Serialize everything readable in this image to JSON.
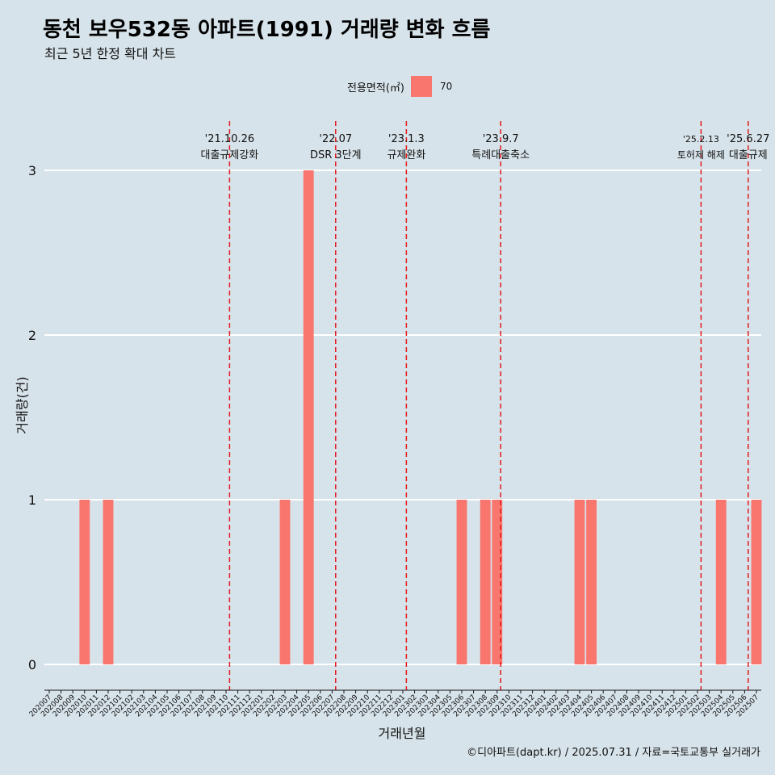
{
  "title": "동천 보우532동 아파트(1991) 거래량 변화 흐름",
  "subtitle": "최근 5년 한정 확대 차트",
  "caption": "©디아파트(dapt.kr) / 2025.07.31 / 자료=국토교통부 실거래가",
  "legend": {
    "title": "전용면적(㎡)",
    "label": "70",
    "color": "#f8766d"
  },
  "colors": {
    "background": "#d7e3ea",
    "bar": "#f8766d",
    "event_line": "#e31a1c",
    "grid": "#ffffff"
  },
  "chart_data": {
    "type": "bar",
    "xlabel": "거래년월",
    "ylabel": "거래량(건)",
    "ylim": [
      0,
      3
    ],
    "yticks": [
      0,
      1,
      2,
      3
    ],
    "grid": "horizontal",
    "legend_position": "top",
    "categories": [
      "202007",
      "202008",
      "202009",
      "202010",
      "202011",
      "202012",
      "202101",
      "202102",
      "202103",
      "202104",
      "202105",
      "202106",
      "202107",
      "202108",
      "202109",
      "202110",
      "202111",
      "202112",
      "202201",
      "202202",
      "202203",
      "202204",
      "202205",
      "202206",
      "202207",
      "202208",
      "202209",
      "202210",
      "202211",
      "202212",
      "202301",
      "202302",
      "202303",
      "202304",
      "202305",
      "202306",
      "202307",
      "202308",
      "202309",
      "202310",
      "202311",
      "202312",
      "202401",
      "202402",
      "202403",
      "202404",
      "202405",
      "202406",
      "202407",
      "202408",
      "202409",
      "202410",
      "202411",
      "202412",
      "202501",
      "202502",
      "202503",
      "202504",
      "202505",
      "202506",
      "202507"
    ],
    "series": [
      {
        "name": "70",
        "values": [
          0,
          0,
          0,
          1,
          0,
          1,
          0,
          0,
          0,
          0,
          0,
          0,
          0,
          0,
          0,
          0,
          0,
          0,
          0,
          0,
          1,
          0,
          3,
          0,
          0,
          0,
          0,
          0,
          0,
          0,
          0,
          0,
          0,
          0,
          0,
          1,
          0,
          1,
          1,
          0,
          0,
          0,
          0,
          0,
          0,
          1,
          1,
          0,
          0,
          0,
          0,
          0,
          0,
          0,
          0,
          0,
          0,
          1,
          0,
          0,
          1
        ]
      }
    ],
    "annotations": [
      {
        "date": "'21.10.26",
        "label": "대출규제강화",
        "x": "202110"
      },
      {
        "date": "'22.07",
        "label": "DSR 3단계",
        "x": "202207"
      },
      {
        "date": "'23.1.3",
        "label": "규제완화",
        "x": "202301"
      },
      {
        "date": "'23.9.7",
        "label": "특례대출축소",
        "x": "202309"
      },
      {
        "date": "'25.2.13",
        "label": "토허제 해제",
        "x": "202502"
      },
      {
        "date": "'25.6.27",
        "label": "대출규제",
        "x": "202506"
      }
    ]
  }
}
